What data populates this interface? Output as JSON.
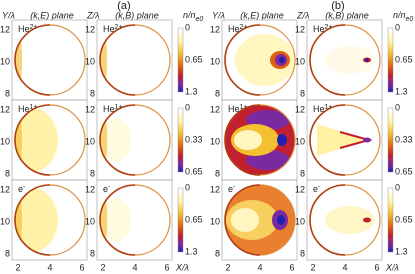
{
  "groups": [
    {
      "label": "(a)",
      "columns": [
        {
          "y_label": "Y/λ",
          "title": "(k,E) plane"
        },
        {
          "y_label": "Z/λ",
          "title": "(k,B) plane"
        }
      ],
      "colorbar": {
        "label": {
          "main": "n/n",
          "sub": "e0"
        },
        "ticks": [
          [
            "0",
            "0.65",
            "1.3"
          ],
          [
            "0",
            "0.33",
            "0.65"
          ],
          [
            "0",
            "0.65",
            "1.3"
          ]
        ]
      },
      "x_label": "X/λ"
    },
    {
      "label": "(b)",
      "columns": [
        {
          "y_label": "Y/λ",
          "title": "(k,E) plane"
        },
        {
          "y_label": "Z/λ",
          "title": "(k,B) plane"
        }
      ],
      "colorbar": {
        "label": {
          "main": "n/n",
          "sub": "e0"
        },
        "ticks": [
          [
            "0",
            "0.65",
            "1.3"
          ],
          [
            "0",
            "0.33",
            "0.65"
          ],
          [
            "0",
            "0.65",
            "1.3"
          ]
        ]
      },
      "x_label": "X/λ"
    }
  ],
  "rows": [
    {
      "base": "He",
      "sup": "2+"
    },
    {
      "base": "He",
      "sup": "1+"
    },
    {
      "base": "e",
      "sup": "-"
    }
  ],
  "x_ticks": [
    "2",
    "4",
    "6"
  ],
  "y_ticks": [
    "12",
    "10",
    "8"
  ]
}
